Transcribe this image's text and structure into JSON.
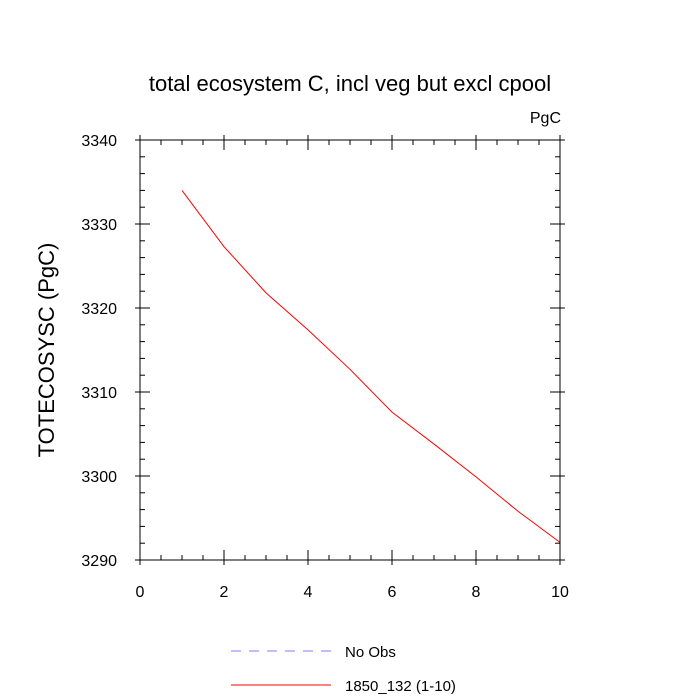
{
  "chart_data": {
    "type": "line",
    "title": "total ecosystem C, incl veg but excl cpool",
    "units_label": "PgC",
    "ylabel": "TOTECOSYSC  (PgC)",
    "xlabel": "",
    "xlim": [
      0,
      10
    ],
    "ylim": [
      3290,
      3340
    ],
    "x_ticks": [
      0,
      2,
      4,
      6,
      8,
      10
    ],
    "x_tick_labels": [
      "0",
      "2",
      "4",
      "6",
      "8",
      "10"
    ],
    "y_ticks": [
      3290,
      3300,
      3310,
      3320,
      3330,
      3340
    ],
    "y_tick_labels": [
      "3290",
      "3300",
      "3310",
      "3320",
      "3330",
      "3340"
    ],
    "x_minor_step": 0.5,
    "y_minor_step": 2,
    "grid": false,
    "legend_position": "bottom",
    "series": [
      {
        "name": "No Obs",
        "color": "#7f7fff",
        "style": "dashed",
        "x": [],
        "values": []
      },
      {
        "name": "1850_132 (1-10)",
        "color": "#ff0000",
        "style": "solid",
        "x": [
          1,
          2,
          3,
          4,
          5,
          6,
          7,
          8,
          9,
          10
        ],
        "values": [
          3334.0,
          3327.3,
          3321.8,
          3317.4,
          3312.7,
          3307.6,
          3303.8,
          3299.9,
          3295.8,
          3292.1
        ]
      }
    ]
  }
}
